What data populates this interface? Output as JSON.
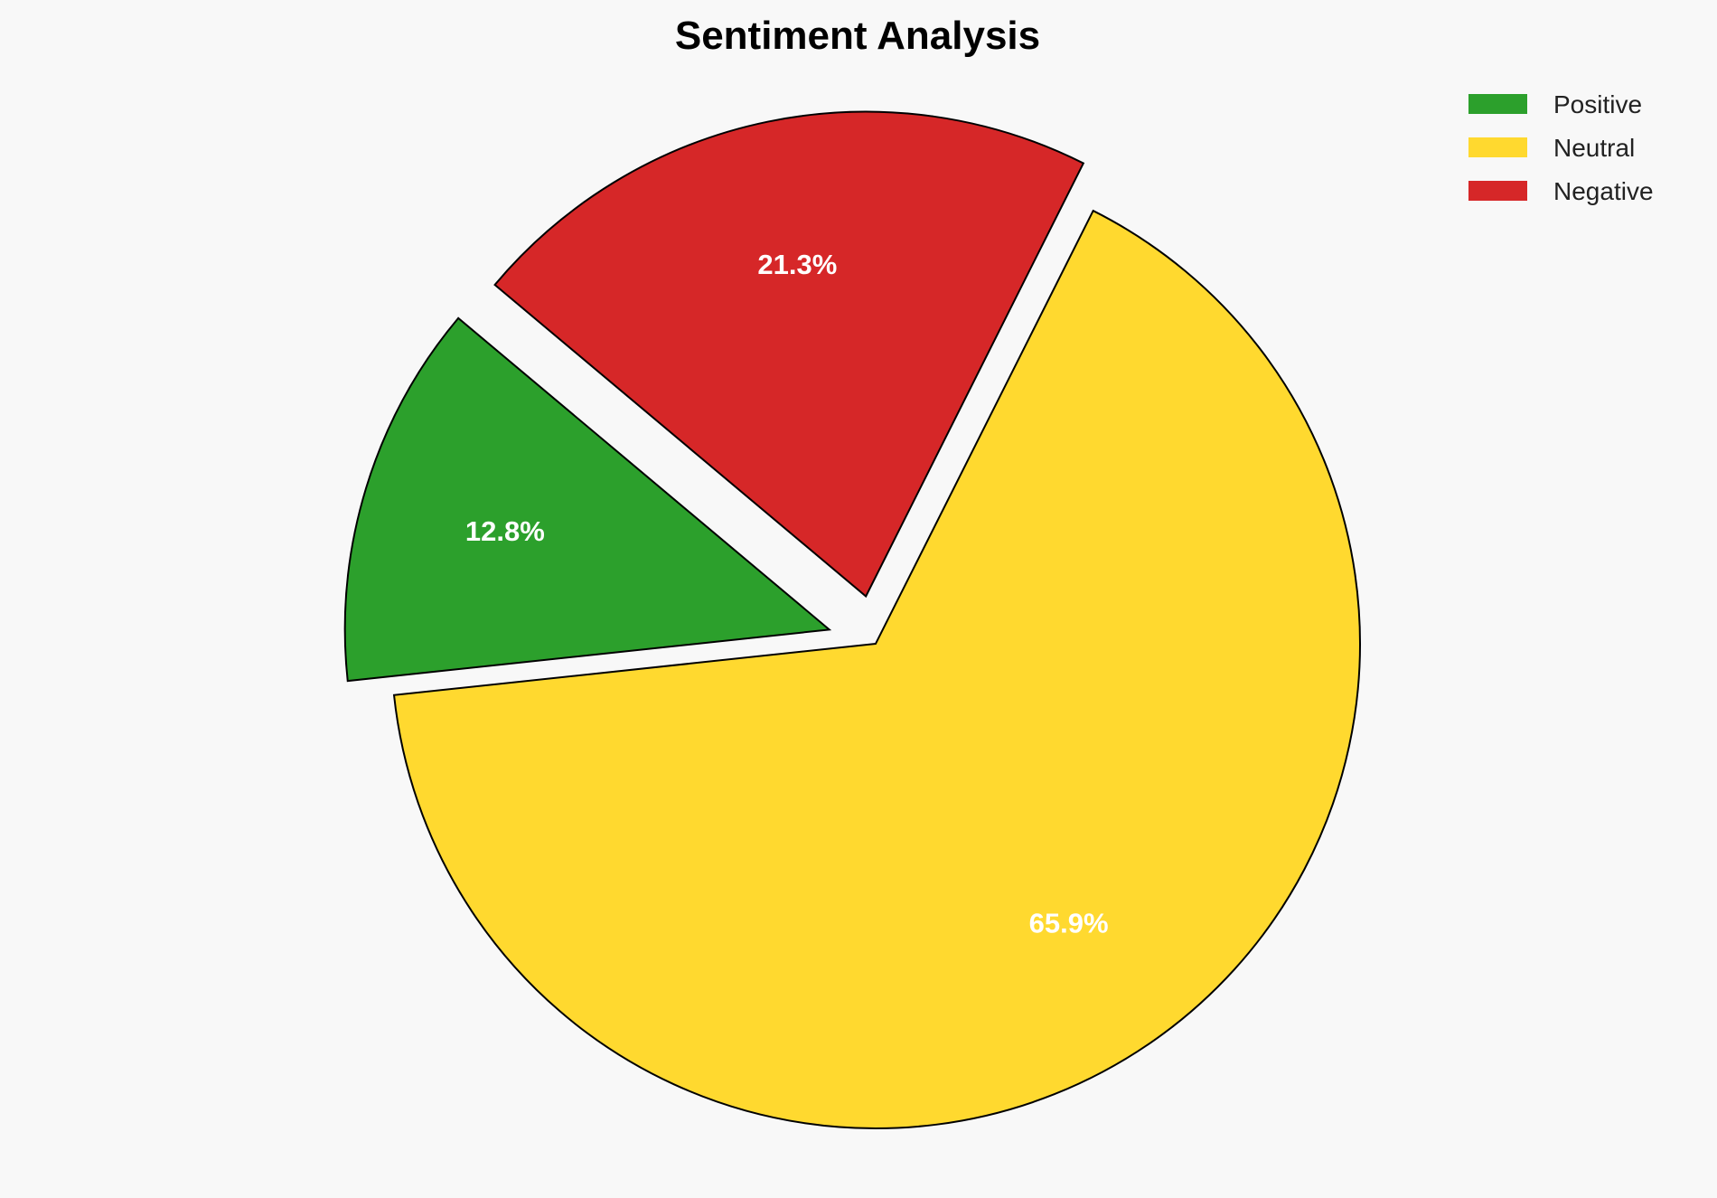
{
  "chart_data": {
    "type": "pie",
    "title": "Sentiment Analysis",
    "categories": [
      "Positive",
      "Neutral",
      "Negative"
    ],
    "values": [
      12.8,
      65.9,
      21.3
    ],
    "labels": [
      "12.8%",
      "65.9%",
      "21.3%"
    ],
    "colors": [
      "#2ca02c",
      "#ffd92f",
      "#d62728"
    ],
    "explode": [
      0.1,
      0,
      0.1
    ],
    "start_angle": 140,
    "direction": "counterclockwise",
    "legend": {
      "placement": "top-right",
      "entries": [
        "Positive",
        "Neutral",
        "Negative"
      ]
    }
  }
}
